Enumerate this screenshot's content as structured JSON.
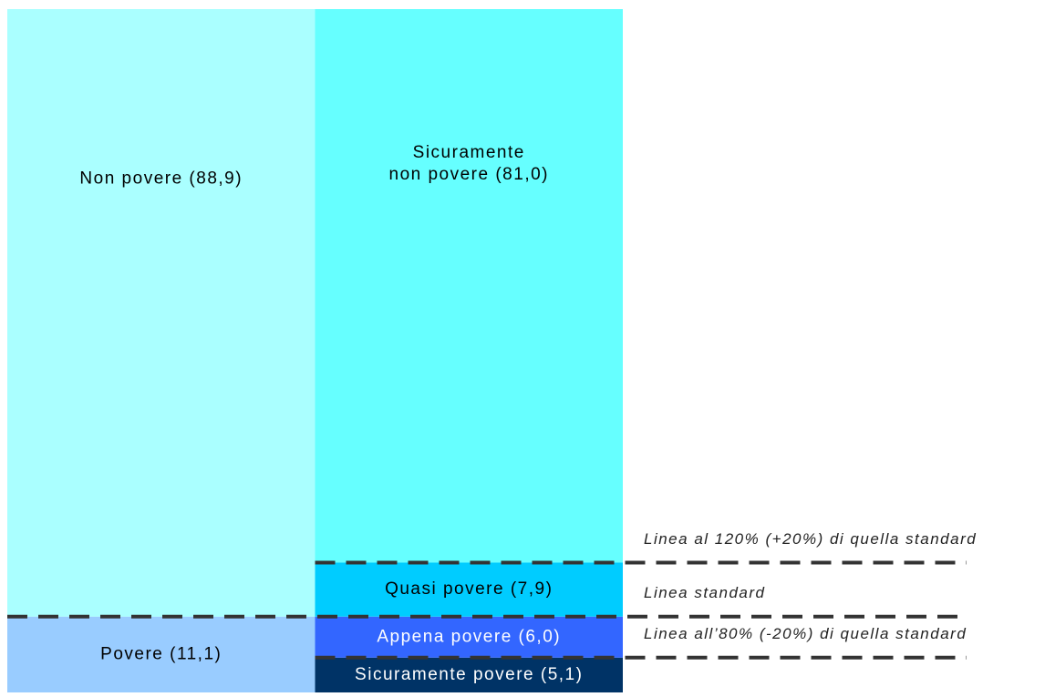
{
  "chart_data": {
    "type": "stacked_bar_100",
    "columns": [
      {
        "segments": [
          {
            "label": [
              "Povere (11,1)"
            ],
            "value": 11.1,
            "color": "#99ccff",
            "text_color": "#000000"
          },
          {
            "label": [
              "Non povere (88,9)"
            ],
            "value": 88.9,
            "color": "#aaffff",
            "text_color": "#000000"
          }
        ]
      },
      {
        "segments": [
          {
            "label": [
              "Sicuramente povere (5,1)"
            ],
            "value": 5.1,
            "color": "#003366",
            "text_color": "#ffffff"
          },
          {
            "label": [
              "Appena povere (6,0)"
            ],
            "value": 6.0,
            "color": "#3366ff",
            "text_color": "#ffffff"
          },
          {
            "label": [
              "Quasi povere (7,9)"
            ],
            "value": 7.9,
            "color": "#00ccff",
            "text_color": "#000000"
          },
          {
            "label": [
              "Sicuramente",
              "non povere (81,0)"
            ],
            "value": 81.0,
            "color": "#66ffff",
            "text_color": "#000000"
          }
        ]
      }
    ],
    "lines": [
      "Linea all’80% (-20%) di quella standard",
      "Linea standard",
      "Linea al 120% (+20%) di quella standard"
    ]
  }
}
